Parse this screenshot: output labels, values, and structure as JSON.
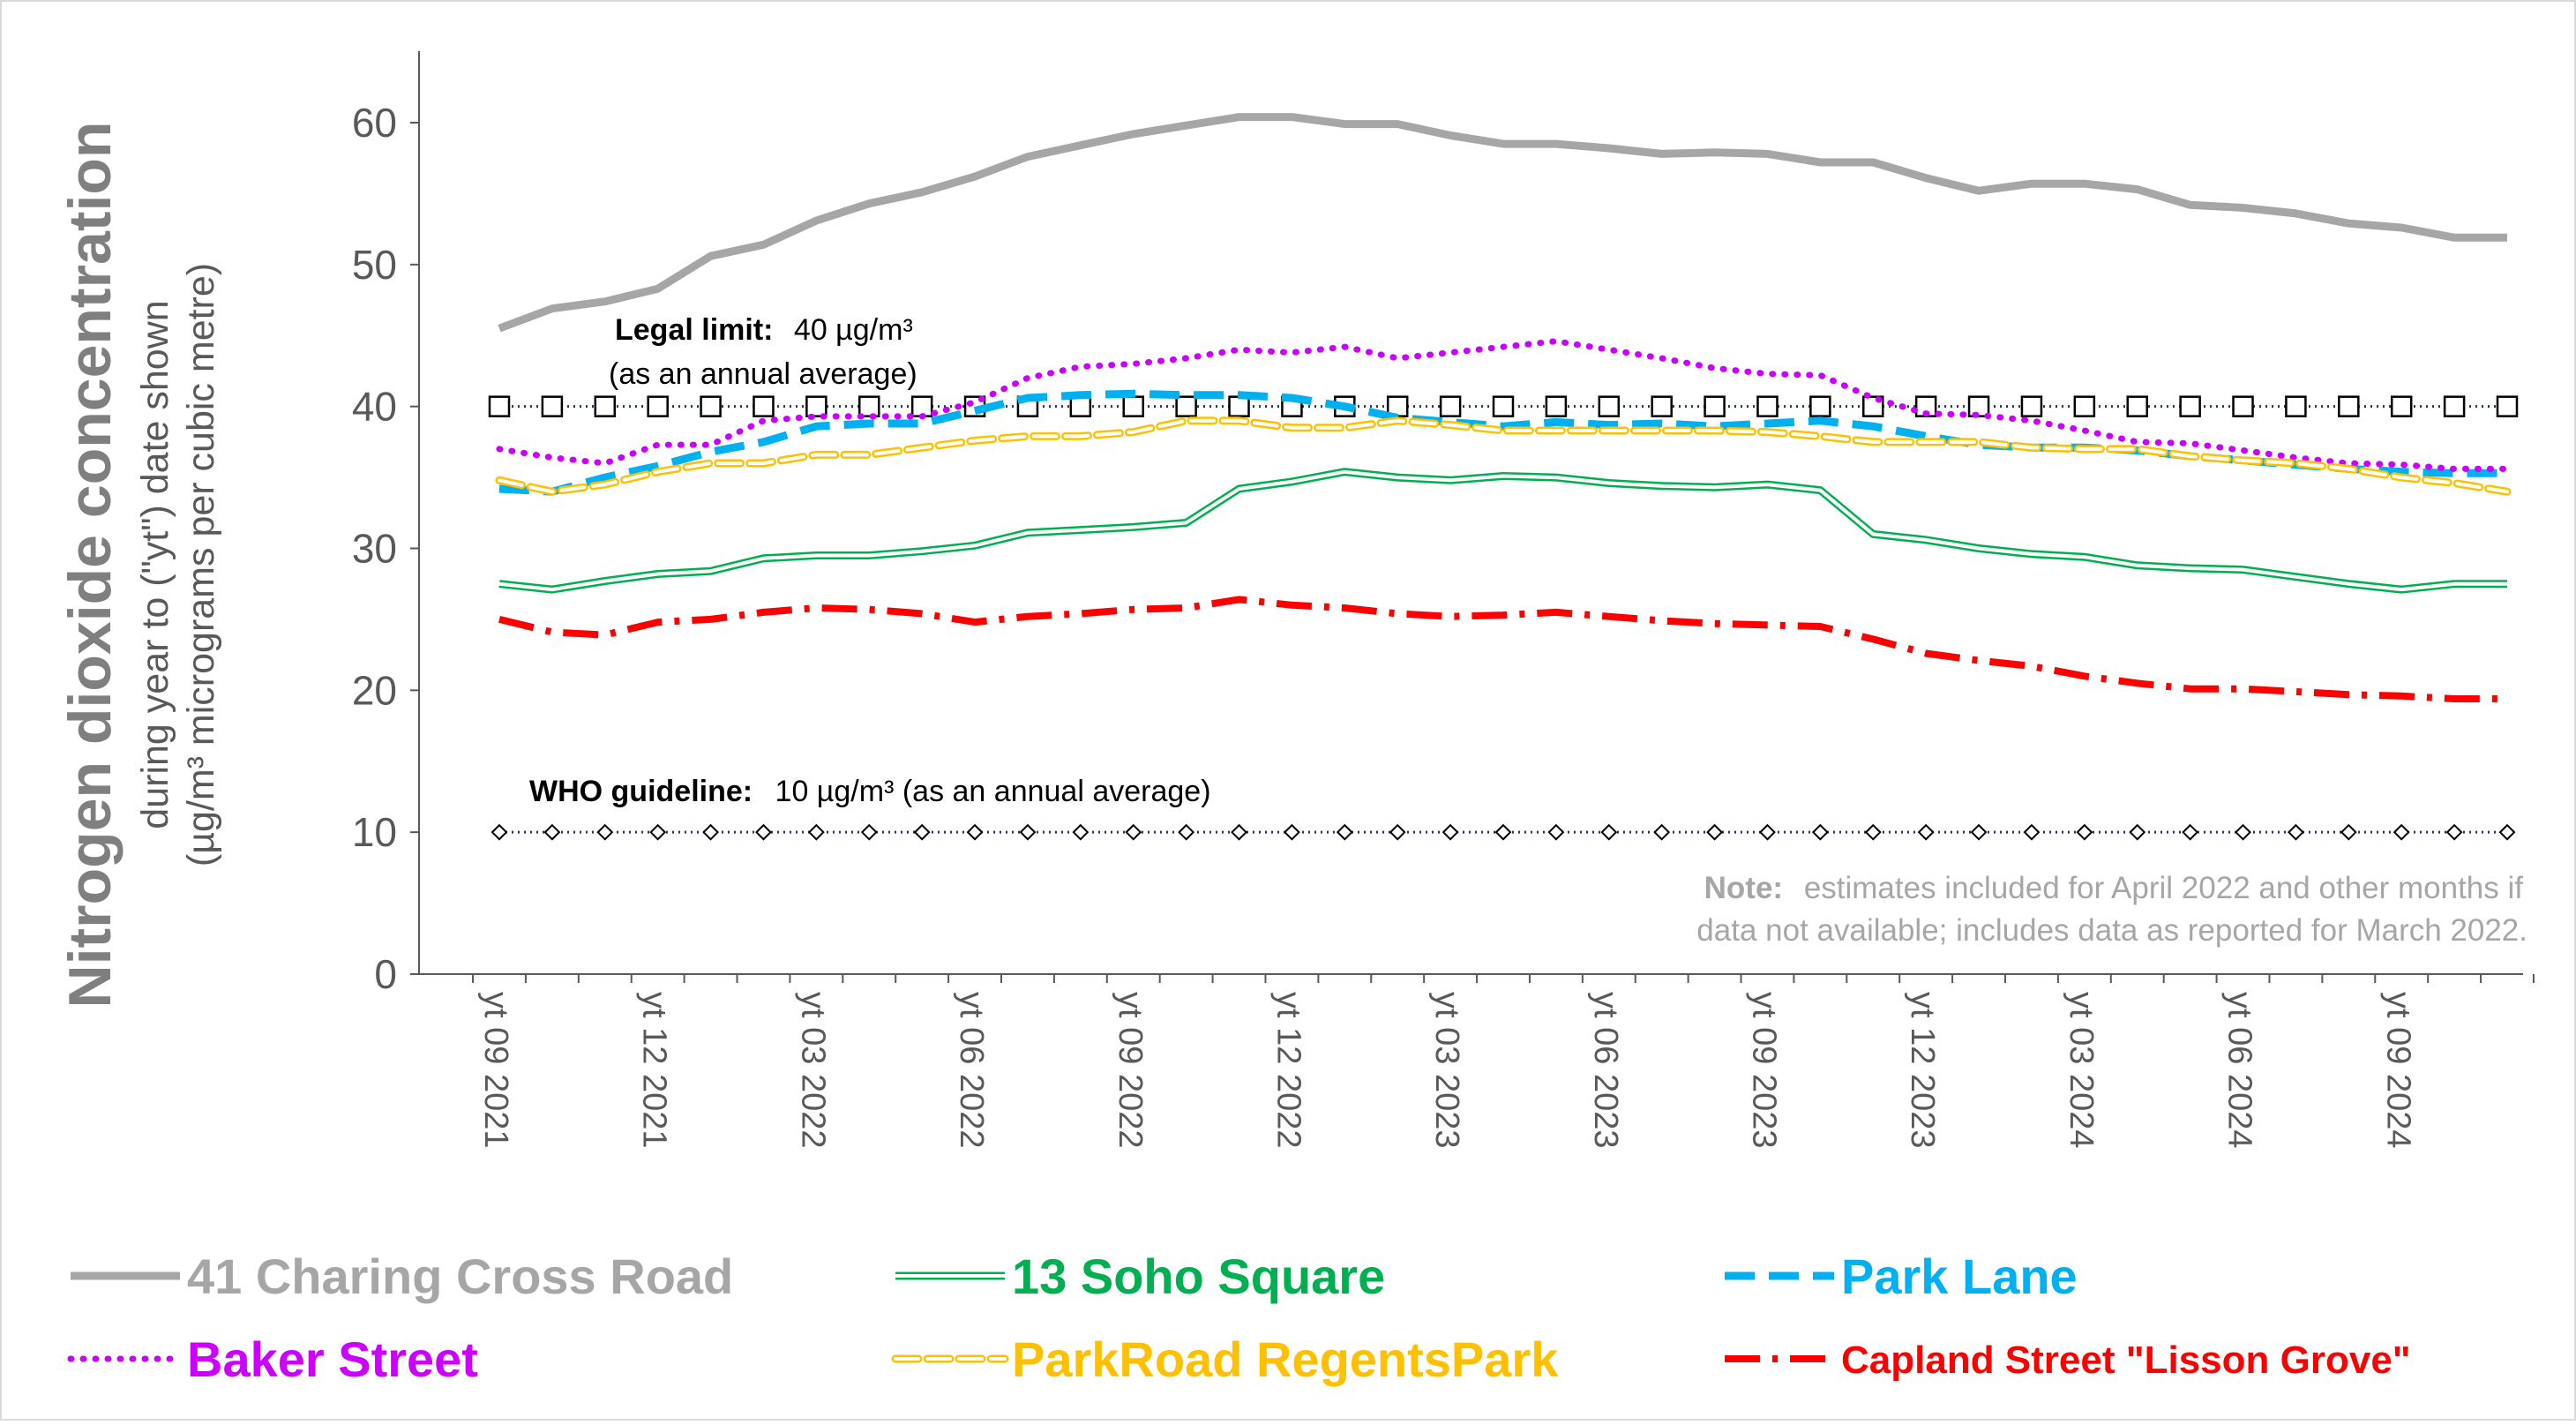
{
  "chart_data": {
    "type": "line",
    "ylabel_main": "Nitrogen dioxide concentration",
    "ylabel_sub1": "during year to (\"yt\") date shown",
    "ylabel_sub2": "(µg/m³ micrograms per cubic metre)",
    "xlabel": "",
    "ylim": [
      0,
      65
    ],
    "y_ticks": [
      0,
      10,
      20,
      30,
      40,
      50,
      60
    ],
    "x_tick_labels": [
      "yt 09 2021",
      "yt 12 2021",
      "yt 03 2022",
      "yt 06 2022",
      "yt 09 2022",
      "yt 12 2022",
      "yt 03 2023",
      "yt 06 2023",
      "yt 09 2023",
      "yt 12 2023",
      "yt 03 2024",
      "yt 06 2024",
      "yt 09 2024"
    ],
    "x": [
      "2021-09",
      "2021-10",
      "2021-11",
      "2021-12",
      "2022-01",
      "2022-02",
      "2022-03",
      "2022-04",
      "2022-05",
      "2022-06",
      "2022-07",
      "2022-08",
      "2022-09",
      "2022-10",
      "2022-11",
      "2022-12",
      "2023-01",
      "2023-02",
      "2023-03",
      "2023-04",
      "2023-05",
      "2023-06",
      "2023-07",
      "2023-08",
      "2023-09",
      "2023-10",
      "2023-11",
      "2023-12",
      "2024-01",
      "2024-02",
      "2024-03",
      "2024-04",
      "2024-05",
      "2024-06",
      "2024-07",
      "2024-08",
      "2024-09",
      "2024-10",
      "2024-11"
    ],
    "grid": false,
    "legend_position": "bottom",
    "series": [
      {
        "name": "41 Charing Cross Road",
        "color": "#a6a6a6",
        "style": "solid",
        "values": [
          45.5,
          46.9,
          47.4,
          48.3,
          50.6,
          51.4,
          53.1,
          54.3,
          55.1,
          56.2,
          57.6,
          58.4,
          59.2,
          59.8,
          60.4,
          60.4,
          59.9,
          59.9,
          59.1,
          58.5,
          58.5,
          58.2,
          57.8,
          57.9,
          57.8,
          57.2,
          57.2,
          56.1,
          55.2,
          55.7,
          55.7,
          55.3,
          54.2,
          54.0,
          53.6,
          52.9,
          52.6,
          51.9,
          51.9
        ]
      },
      {
        "name": "13 Soho Square",
        "color": "#00b050",
        "style": "double",
        "values": [
          27.5,
          27.1,
          27.7,
          28.2,
          28.4,
          29.3,
          29.5,
          29.5,
          29.8,
          30.2,
          31.1,
          31.3,
          31.5,
          31.8,
          34.2,
          34.7,
          35.4,
          35.0,
          34.8,
          35.1,
          35.0,
          34.6,
          34.4,
          34.3,
          34.5,
          34.1,
          31.0,
          30.6,
          30.0,
          29.6,
          29.4,
          28.8,
          28.6,
          28.5,
          28.0,
          27.5,
          27.1,
          27.5,
          27.5
        ]
      },
      {
        "name": "Park Lane",
        "color": "#00b0f0",
        "style": "dash",
        "values": [
          34.2,
          34.0,
          35.0,
          35.8,
          36.8,
          37.5,
          38.6,
          38.8,
          38.8,
          39.7,
          40.6,
          40.8,
          40.9,
          40.8,
          40.8,
          40.6,
          40.0,
          39.2,
          38.9,
          38.6,
          38.9,
          38.7,
          38.8,
          38.6,
          38.8,
          39.0,
          38.6,
          37.9,
          37.3,
          37.1,
          37.1,
          36.9,
          36.5,
          36.2,
          35.9,
          35.6,
          35.4,
          35.3,
          35.3
        ]
      },
      {
        "name": "Baker Street",
        "color": "#cc00ff",
        "style": "dot",
        "values": [
          37.0,
          36.4,
          36.0,
          37.3,
          37.3,
          39.0,
          39.3,
          39.3,
          39.3,
          40.3,
          42.0,
          42.8,
          43.0,
          43.4,
          44.0,
          43.8,
          44.2,
          43.4,
          43.8,
          44.2,
          44.6,
          44.0,
          43.4,
          42.7,
          42.3,
          42.2,
          40.6,
          39.5,
          39.4,
          39.0,
          38.3,
          37.5,
          37.4,
          36.9,
          36.4,
          36.0,
          35.9,
          35.6,
          35.6
        ]
      },
      {
        "name": "ParkRoad RegentsPark",
        "color": "#ffc000",
        "style": "hollowdash",
        "values": [
          34.8,
          34.0,
          34.5,
          35.4,
          36.0,
          36.0,
          36.6,
          36.6,
          37.1,
          37.6,
          37.9,
          37.9,
          38.2,
          39.0,
          39.0,
          38.5,
          38.5,
          39.0,
          38.7,
          38.3,
          38.3,
          38.3,
          38.3,
          38.3,
          38.2,
          37.9,
          37.5,
          37.5,
          37.5,
          37.1,
          37.0,
          37.0,
          36.5,
          36.2,
          36.0,
          35.6,
          35.0,
          34.6,
          34.0
        ]
      },
      {
        "name": "Capland Street \"Lisson Grove\"",
        "color": "#ff0000",
        "style": "dashdot",
        "values": [
          25.0,
          24.1,
          23.9,
          24.8,
          25.0,
          25.5,
          25.8,
          25.7,
          25.4,
          24.8,
          25.2,
          25.4,
          25.7,
          25.8,
          26.4,
          26.0,
          25.8,
          25.4,
          25.2,
          25.3,
          25.5,
          25.2,
          24.9,
          24.7,
          24.6,
          24.5,
          23.6,
          22.6,
          22.1,
          21.7,
          21.0,
          20.5,
          20.1,
          20.1,
          19.9,
          19.7,
          19.6,
          19.4,
          19.4
        ]
      }
    ],
    "reference_lines": [
      {
        "name": "Legal limit",
        "value": 40,
        "marker": "square"
      },
      {
        "name": "WHO guideline",
        "value": 10,
        "marker": "diamond"
      }
    ],
    "annotations": {
      "legal_bold": "Legal limit:",
      "legal_value": "40 µg/m³",
      "legal_sub": "(as an annual average)",
      "who_bold": "WHO guideline:",
      "who_value": "10 µg/m³ (as an annual average)",
      "note_bold": "Note:",
      "note_line1": "estimates included for April 2022 and other months if",
      "note_line2": "data not available; includes data as reported for March 2022."
    }
  }
}
